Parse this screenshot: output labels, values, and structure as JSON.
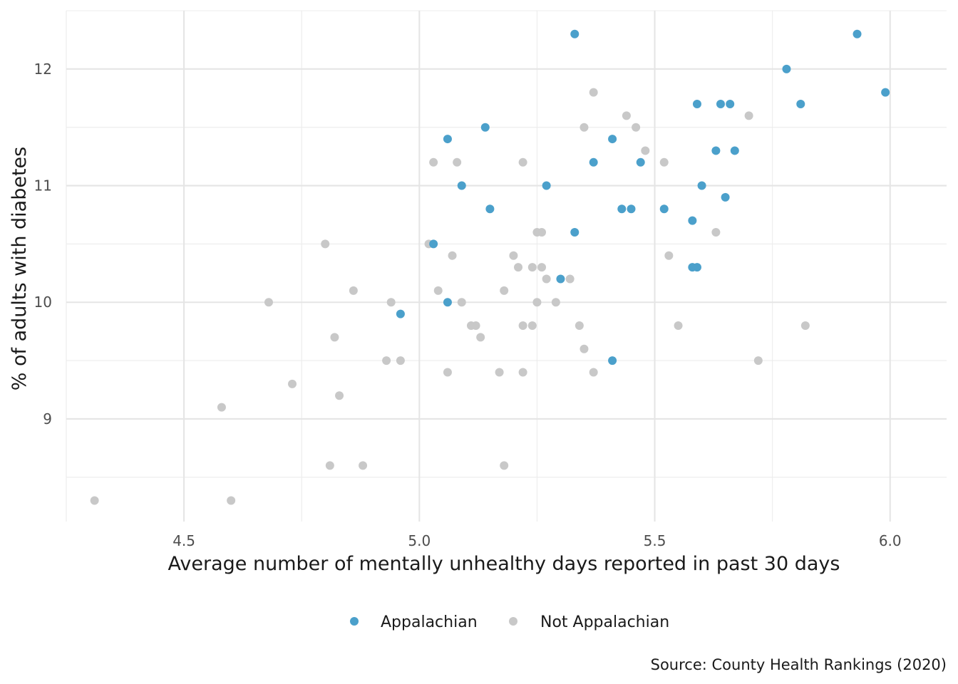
{
  "chart_data": {
    "type": "scatter",
    "title": "",
    "xlabel": "Average number of mentally unhealthy days reported in past 30 days",
    "ylabel": "% of adults with diabetes",
    "caption": "Source: County Health Rankings (2020)",
    "xlim": [
      4.25,
      6.12
    ],
    "ylim": [
      8.12,
      12.5
    ],
    "x_ticks": [
      4.5,
      5.0,
      5.5,
      6.0
    ],
    "x_tick_labels": [
      "4.5",
      "5.0",
      "5.5",
      "6.0"
    ],
    "y_ticks": [
      9,
      10,
      11,
      12
    ],
    "y_tick_labels": [
      "9",
      "10",
      "11",
      "12"
    ],
    "grid": true,
    "legend_position": "bottom",
    "series": [
      {
        "name": "Appalachian",
        "color": "#4ba0cb",
        "points": [
          [
            5.33,
            12.3
          ],
          [
            5.93,
            12.3
          ],
          [
            5.78,
            12.0
          ],
          [
            5.99,
            11.8
          ],
          [
            5.59,
            11.7
          ],
          [
            5.64,
            11.7
          ],
          [
            5.66,
            11.7
          ],
          [
            5.81,
            11.7
          ],
          [
            5.06,
            11.4
          ],
          [
            5.14,
            11.5
          ],
          [
            5.41,
            11.4
          ],
          [
            5.63,
            11.3
          ],
          [
            5.67,
            11.3
          ],
          [
            5.37,
            11.2
          ],
          [
            5.47,
            11.2
          ],
          [
            5.09,
            11.0
          ],
          [
            5.27,
            11.0
          ],
          [
            5.6,
            11.0
          ],
          [
            5.65,
            10.9
          ],
          [
            5.15,
            10.8
          ],
          [
            5.43,
            10.8
          ],
          [
            5.45,
            10.8
          ],
          [
            5.52,
            10.8
          ],
          [
            5.58,
            10.7
          ],
          [
            5.33,
            10.6
          ],
          [
            5.03,
            10.5
          ],
          [
            5.58,
            10.3
          ],
          [
            5.59,
            10.3
          ],
          [
            5.3,
            10.2
          ],
          [
            5.06,
            10.0
          ],
          [
            4.96,
            9.9
          ],
          [
            5.41,
            9.5
          ]
        ]
      },
      {
        "name": "Not Appalachian",
        "color": "#c8c8c8",
        "points": [
          [
            5.37,
            11.8
          ],
          [
            5.44,
            11.6
          ],
          [
            5.7,
            11.6
          ],
          [
            5.35,
            11.5
          ],
          [
            5.46,
            11.5
          ],
          [
            5.48,
            11.3
          ],
          [
            5.03,
            11.2
          ],
          [
            5.08,
            11.2
          ],
          [
            5.22,
            11.2
          ],
          [
            5.52,
            11.2
          ],
          [
            5.25,
            10.6
          ],
          [
            5.26,
            10.6
          ],
          [
            5.63,
            10.6
          ],
          [
            4.8,
            10.5
          ],
          [
            5.02,
            10.5
          ],
          [
            5.07,
            10.4
          ],
          [
            5.2,
            10.4
          ],
          [
            5.53,
            10.4
          ],
          [
            5.21,
            10.3
          ],
          [
            5.24,
            10.3
          ],
          [
            5.26,
            10.3
          ],
          [
            5.27,
            10.2
          ],
          [
            5.32,
            10.2
          ],
          [
            4.86,
            10.1
          ],
          [
            5.04,
            10.1
          ],
          [
            5.18,
            10.1
          ],
          [
            4.68,
            10.0
          ],
          [
            4.94,
            10.0
          ],
          [
            5.09,
            10.0
          ],
          [
            5.25,
            10.0
          ],
          [
            5.29,
            10.0
          ],
          [
            5.11,
            9.8
          ],
          [
            5.12,
            9.8
          ],
          [
            5.22,
            9.8
          ],
          [
            5.24,
            9.8
          ],
          [
            5.34,
            9.8
          ],
          [
            5.55,
            9.8
          ],
          [
            5.82,
            9.8
          ],
          [
            4.82,
            9.7
          ],
          [
            5.13,
            9.7
          ],
          [
            5.35,
            9.6
          ],
          [
            4.93,
            9.5
          ],
          [
            4.96,
            9.5
          ],
          [
            5.72,
            9.5
          ],
          [
            5.06,
            9.4
          ],
          [
            5.17,
            9.4
          ],
          [
            5.22,
            9.4
          ],
          [
            5.37,
            9.4
          ],
          [
            4.73,
            9.3
          ],
          [
            4.58,
            9.1
          ],
          [
            4.83,
            9.2
          ],
          [
            4.81,
            8.6
          ],
          [
            4.88,
            8.6
          ],
          [
            5.18,
            8.6
          ],
          [
            4.31,
            8.3
          ],
          [
            4.6,
            8.3
          ]
        ]
      }
    ]
  }
}
